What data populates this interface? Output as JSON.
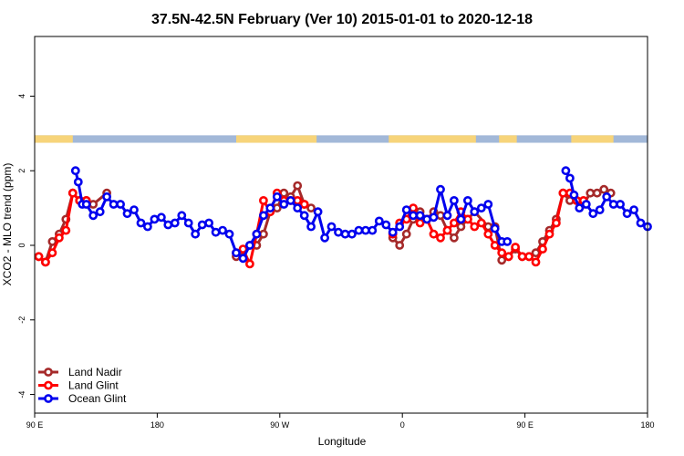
{
  "chart_data": {
    "type": "line",
    "title": "37.5N-42.5N February (Ver 10)   2015-01-01 to 2020-12-18",
    "xlabel": "Longitude",
    "ylabel": "XCO2 - MLO trend (ppm)",
    "xlim": [
      90,
      540
    ],
    "ylim": [
      -4.5,
      5.6
    ],
    "x_ticks": [
      {
        "x": 90,
        "label": "90 E"
      },
      {
        "x": 180,
        "label": "180"
      },
      {
        "x": 270,
        "label": "90 W"
      },
      {
        "x": 360,
        "label": "0"
      },
      {
        "x": 450,
        "label": "90 E"
      },
      {
        "x": 540,
        "label": "180"
      }
    ],
    "y_ticks": [
      {
        "y": -4,
        "label": "-4"
      },
      {
        "y": -2,
        "label": "-2"
      },
      {
        "y": 0,
        "label": "0"
      },
      {
        "y": 2,
        "label": "2"
      },
      {
        "y": 4,
        "label": "4"
      }
    ],
    "grid": false,
    "legend_position": "bottom-left",
    "landmask": {
      "y_range": [
        2.75,
        2.95
      ],
      "ocean_color": "#a2b8d8",
      "land_color": "#f7d47a",
      "land_segments": [
        [
          90,
          118
        ],
        [
          238,
          297
        ],
        [
          350,
          414
        ],
        [
          431,
          444
        ],
        [
          484,
          515
        ]
      ]
    },
    "series": [
      {
        "name": "Land Nadir",
        "color": "#a52a2a",
        "x": [
          93,
          98,
          103,
          108,
          113,
          118,
          123,
          128,
          133,
          143,
          238,
          243,
          248,
          253,
          258,
          263,
          268,
          273,
          278,
          283,
          288,
          293,
          353,
          358,
          363,
          368,
          373,
          378,
          383,
          388,
          393,
          398,
          403,
          408,
          413,
          423,
          428,
          433,
          438,
          443,
          448,
          453,
          458,
          463,
          468,
          473,
          478,
          483,
          488,
          493,
          498,
          503,
          508,
          513
        ],
        "y": [
          -0.3,
          -0.45,
          0.1,
          0.3,
          0.7,
          1.4,
          1.2,
          1.2,
          1.1,
          1.4,
          -0.3,
          -0.3,
          0.0,
          0.0,
          0.3,
          0.9,
          1.0,
          1.4,
          1.3,
          1.6,
          1.1,
          1.0,
          0.2,
          0.0,
          0.3,
          0.7,
          0.9,
          0.7,
          0.9,
          0.8,
          0.4,
          0.2,
          0.5,
          0.7,
          0.9,
          0.5,
          0.5,
          -0.4,
          -0.3,
          -0.1,
          -0.3,
          -0.3,
          -0.2,
          0.1,
          0.4,
          0.7,
          1.4,
          1.2,
          1.2,
          1.1,
          1.4,
          1.4,
          1.5,
          1.4
        ]
      },
      {
        "name": "Land Glint",
        "color": "#ff0000",
        "x": [
          93,
          98,
          103,
          108,
          113,
          118,
          123,
          128,
          238,
          243,
          248,
          253,
          258,
          263,
          268,
          273,
          278,
          283,
          288,
          353,
          358,
          363,
          368,
          373,
          378,
          383,
          388,
          393,
          398,
          403,
          408,
          413,
          418,
          423,
          428,
          433,
          438,
          443,
          448,
          453,
          458,
          463,
          468,
          473,
          478,
          483,
          488,
          493
        ],
        "y": [
          -0.3,
          -0.45,
          -0.2,
          0.2,
          0.4,
          1.4,
          1.2,
          1.2,
          -0.2,
          -0.1,
          -0.5,
          0.3,
          1.2,
          0.9,
          1.4,
          1.2,
          1.2,
          1.2,
          1.1,
          0.3,
          0.6,
          0.7,
          1.0,
          0.6,
          0.7,
          0.3,
          0.2,
          0.4,
          0.6,
          0.9,
          0.7,
          0.5,
          0.6,
          0.3,
          0.0,
          -0.2,
          -0.3,
          -0.05,
          -0.3,
          -0.3,
          -0.45,
          -0.1,
          0.3,
          0.6,
          1.4,
          1.4,
          1.2,
          1.2
        ]
      },
      {
        "name": "Ocean Glint",
        "color": "#0000ee",
        "x": [
          120,
          122,
          125,
          128,
          133,
          138,
          143,
          148,
          153,
          158,
          163,
          168,
          173,
          178,
          183,
          188,
          193,
          198,
          203,
          208,
          213,
          218,
          223,
          228,
          233,
          238,
          243,
          248,
          253,
          258,
          263,
          268,
          273,
          278,
          283,
          288,
          293,
          298,
          303,
          308,
          313,
          318,
          323,
          328,
          333,
          338,
          343,
          348,
          353,
          358,
          363,
          368,
          373,
          378,
          383,
          388,
          393,
          398,
          403,
          408,
          413,
          418,
          423,
          428,
          433,
          437,
          480,
          483,
          486,
          490,
          495,
          500,
          505,
          510,
          515,
          520,
          525,
          530,
          535,
          540
        ],
        "y": [
          2.0,
          1.7,
          1.1,
          1.1,
          0.8,
          0.9,
          1.3,
          1.1,
          1.1,
          0.85,
          0.95,
          0.6,
          0.5,
          0.7,
          0.75,
          0.55,
          0.6,
          0.8,
          0.6,
          0.3,
          0.55,
          0.6,
          0.35,
          0.4,
          0.3,
          -0.2,
          -0.35,
          0.0,
          0.3,
          0.8,
          1.0,
          1.3,
          1.1,
          1.2,
          1.0,
          0.8,
          0.5,
          0.9,
          0.2,
          0.5,
          0.35,
          0.3,
          0.3,
          0.4,
          0.4,
          0.4,
          0.65,
          0.55,
          0.35,
          0.5,
          0.95,
          0.8,
          0.8,
          0.7,
          0.75,
          1.5,
          0.8,
          1.2,
          0.7,
          1.2,
          0.9,
          1.0,
          1.1,
          0.45,
          0.1,
          0.1,
          2.0,
          1.8,
          1.35,
          1.0,
          1.1,
          0.85,
          0.95,
          1.3,
          1.1,
          1.1,
          0.85,
          0.95,
          0.6,
          0.5
        ]
      }
    ]
  }
}
